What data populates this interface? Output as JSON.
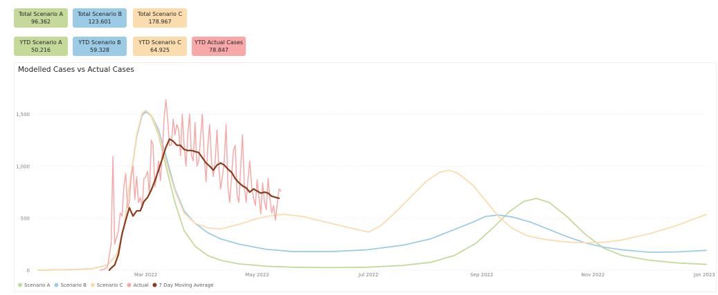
{
  "cards": [
    {
      "label": "Total Scenario A",
      "value": "96.362",
      "color": "#c5d99a"
    },
    {
      "label": "Total Scenario B",
      "value": "123.601",
      "color": "#9ccbe5"
    },
    {
      "label": "Total Scenario C",
      "value": "178.967",
      "color": "#fbdcae"
    },
    {
      "label": "YTD Scenario A",
      "value": "50.216",
      "color": "#c5d99a"
    },
    {
      "label": "YTD Scenario B",
      "value": "59.328",
      "color": "#9ccbe5"
    },
    {
      "label": "YTD Scenario C",
      "value": "64.925",
      "color": "#fbdcae"
    },
    {
      "label": "YTD Actual Cases",
      "value": "78.847",
      "color": "#f8a8a8"
    }
  ],
  "chart_data": {
    "type": "line",
    "title": "Modelled Cases vs Actual Cases",
    "xlabel": "",
    "ylabel": "",
    "x_ticks": [
      "Mar 2022",
      "May 2022",
      "Jul 2022",
      "Sep 2022",
      "Nov 2022",
      "Jan 2023"
    ],
    "x_tick_days": [
      59,
      120,
      181,
      243,
      304,
      365
    ],
    "xlim_days": [
      0,
      366
    ],
    "y_ticks": [
      "0",
      "500",
      "1,000",
      "1,500"
    ],
    "y_tick_values": [
      0,
      500,
      1000,
      1500
    ],
    "ylim": [
      0,
      1700
    ],
    "grid": true,
    "legend_position": "bottom-left",
    "series": [
      {
        "name": "Scenario A",
        "color": "#c5d99a",
        "width": 1.8,
        "points": [
          [
            0,
            0
          ],
          [
            20,
            5
          ],
          [
            30,
            15
          ],
          [
            38,
            50
          ],
          [
            43,
            150
          ],
          [
            47,
            400
          ],
          [
            50,
            800
          ],
          [
            54,
            1300
          ],
          [
            57,
            1500
          ],
          [
            59,
            1530
          ],
          [
            62,
            1480
          ],
          [
            66,
            1300
          ],
          [
            70,
            1000
          ],
          [
            75,
            650
          ],
          [
            80,
            380
          ],
          [
            86,
            230
          ],
          [
            93,
            140
          ],
          [
            100,
            95
          ],
          [
            110,
            60
          ],
          [
            125,
            38
          ],
          [
            140,
            28
          ],
          [
            160,
            24
          ],
          [
            180,
            28
          ],
          [
            200,
            45
          ],
          [
            215,
            75
          ],
          [
            228,
            140
          ],
          [
            240,
            260
          ],
          [
            250,
            420
          ],
          [
            258,
            560
          ],
          [
            266,
            660
          ],
          [
            273,
            690
          ],
          [
            280,
            650
          ],
          [
            290,
            510
          ],
          [
            300,
            340
          ],
          [
            310,
            210
          ],
          [
            320,
            140
          ],
          [
            335,
            95
          ],
          [
            350,
            70
          ],
          [
            366,
            55
          ]
        ]
      },
      {
        "name": "Scenario B",
        "color": "#9ccbe5",
        "width": 1.8,
        "points": [
          [
            0,
            0
          ],
          [
            20,
            5
          ],
          [
            30,
            15
          ],
          [
            38,
            50
          ],
          [
            43,
            150
          ],
          [
            47,
            400
          ],
          [
            50,
            800
          ],
          [
            54,
            1280
          ],
          [
            57,
            1490
          ],
          [
            59,
            1520
          ],
          [
            62,
            1490
          ],
          [
            66,
            1350
          ],
          [
            70,
            1100
          ],
          [
            75,
            780
          ],
          [
            80,
            570
          ],
          [
            86,
            450
          ],
          [
            93,
            360
          ],
          [
            100,
            300
          ],
          [
            110,
            250
          ],
          [
            125,
            200
          ],
          [
            140,
            178
          ],
          [
            160,
            178
          ],
          [
            180,
            195
          ],
          [
            200,
            240
          ],
          [
            215,
            300
          ],
          [
            228,
            390
          ],
          [
            238,
            460
          ],
          [
            245,
            515
          ],
          [
            252,
            530
          ],
          [
            260,
            510
          ],
          [
            270,
            460
          ],
          [
            280,
            390
          ],
          [
            290,
            320
          ],
          [
            300,
            260
          ],
          [
            310,
            220
          ],
          [
            320,
            195
          ],
          [
            335,
            172
          ],
          [
            350,
            175
          ],
          [
            366,
            190
          ]
        ]
      },
      {
        "name": "Scenario C",
        "color": "#fbdcae",
        "width": 1.8,
        "points": [
          [
            0,
            0
          ],
          [
            20,
            5
          ],
          [
            30,
            15
          ],
          [
            38,
            50
          ],
          [
            43,
            150
          ],
          [
            47,
            400
          ],
          [
            50,
            800
          ],
          [
            54,
            1300
          ],
          [
            57,
            1510
          ],
          [
            59,
            1535
          ],
          [
            62,
            1490
          ],
          [
            66,
            1320
          ],
          [
            70,
            1050
          ],
          [
            75,
            760
          ],
          [
            80,
            550
          ],
          [
            86,
            450
          ],
          [
            93,
            405
          ],
          [
            100,
            395
          ],
          [
            110,
            440
          ],
          [
            120,
            495
          ],
          [
            128,
            525
          ],
          [
            135,
            535
          ],
          [
            145,
            515
          ],
          [
            158,
            460
          ],
          [
            170,
            410
          ],
          [
            181,
            365
          ],
          [
            188,
            430
          ],
          [
            196,
            560
          ],
          [
            205,
            720
          ],
          [
            213,
            860
          ],
          [
            220,
            940
          ],
          [
            225,
            960
          ],
          [
            230,
            930
          ],
          [
            238,
            820
          ],
          [
            246,
            650
          ],
          [
            253,
            500
          ],
          [
            260,
            400
          ],
          [
            268,
            330
          ],
          [
            276,
            300
          ],
          [
            284,
            280
          ],
          [
            292,
            268
          ],
          [
            300,
            262
          ],
          [
            310,
            268
          ],
          [
            320,
            290
          ],
          [
            335,
            350
          ],
          [
            350,
            430
          ],
          [
            366,
            535
          ]
        ]
      },
      {
        "name": "Actual",
        "color": "#f8a8a8",
        "width": 1.5,
        "points": [
          [
            34,
            0
          ],
          [
            36,
            5
          ],
          [
            38,
            30
          ],
          [
            40,
            250
          ],
          [
            41,
            1090
          ],
          [
            42,
            250
          ],
          [
            44,
            380
          ],
          [
            45,
            550
          ],
          [
            46,
            520
          ],
          [
            47,
            800
          ],
          [
            48,
            930
          ],
          [
            49,
            600
          ],
          [
            50,
            650
          ],
          [
            51,
            900
          ],
          [
            52,
            1000
          ],
          [
            53,
            680
          ],
          [
            54,
            900
          ],
          [
            55,
            650
          ],
          [
            56,
            700
          ],
          [
            57,
            600
          ],
          [
            58,
            880
          ],
          [
            59,
            900
          ],
          [
            60,
            950
          ],
          [
            61,
            720
          ],
          [
            62,
            1250
          ],
          [
            63,
            1200
          ],
          [
            64,
            800
          ],
          [
            65,
            900
          ],
          [
            66,
            1050
          ],
          [
            67,
            860
          ],
          [
            68,
            1100
          ],
          [
            69,
            1450
          ],
          [
            70,
            1640
          ],
          [
            71,
            1450
          ],
          [
            72,
            1200
          ],
          [
            73,
            1200
          ],
          [
            74,
            1450
          ],
          [
            75,
            1300
          ],
          [
            76,
            1400
          ],
          [
            77,
            1350
          ],
          [
            78,
            1100
          ],
          [
            79,
            1500
          ],
          [
            80,
            1200
          ],
          [
            81,
            1000
          ],
          [
            82,
            1300
          ],
          [
            83,
            1500
          ],
          [
            84,
            1100
          ],
          [
            85,
            1050
          ],
          [
            86,
            1420
          ],
          [
            87,
            1000
          ],
          [
            88,
            1050
          ],
          [
            89,
            1280
          ],
          [
            90,
            1500
          ],
          [
            91,
            1100
          ],
          [
            92,
            850
          ],
          [
            93,
            1200
          ],
          [
            94,
            1400
          ],
          [
            95,
            1050
          ],
          [
            96,
            900
          ],
          [
            97,
            1050
          ],
          [
            98,
            1350
          ],
          [
            99,
            1000
          ],
          [
            100,
            780
          ],
          [
            101,
            900
          ],
          [
            102,
            1050
          ],
          [
            103,
            1400
          ],
          [
            104,
            800
          ],
          [
            105,
            650
          ],
          [
            106,
            900
          ],
          [
            107,
            1150
          ],
          [
            108,
            1200
          ],
          [
            109,
            720
          ],
          [
            110,
            650
          ],
          [
            111,
            1000
          ],
          [
            112,
            1300
          ],
          [
            113,
            800
          ],
          [
            114,
            650
          ],
          [
            115,
            880
          ],
          [
            116,
            1050
          ],
          [
            117,
            800
          ],
          [
            118,
            700
          ],
          [
            119,
            620
          ],
          [
            120,
            870
          ],
          [
            121,
            700
          ],
          [
            122,
            540
          ],
          [
            123,
            840
          ],
          [
            124,
            660
          ],
          [
            125,
            580
          ],
          [
            126,
            880
          ],
          [
            127,
            690
          ],
          [
            128,
            550
          ],
          [
            129,
            620
          ],
          [
            130,
            480
          ],
          [
            131,
            640
          ],
          [
            132,
            780
          ],
          [
            133,
            760
          ]
        ]
      },
      {
        "name": "7 Day Moving Average",
        "color": "#8b3a1a",
        "width": 2.2,
        "points": [
          [
            39,
            0
          ],
          [
            40,
            20
          ],
          [
            42,
            50
          ],
          [
            44,
            150
          ],
          [
            46,
            350
          ],
          [
            48,
            480
          ],
          [
            50,
            600
          ],
          [
            52,
            520
          ],
          [
            54,
            570
          ],
          [
            56,
            570
          ],
          [
            58,
            660
          ],
          [
            60,
            700
          ],
          [
            62,
            770
          ],
          [
            64,
            860
          ],
          [
            66,
            960
          ],
          [
            68,
            1070
          ],
          [
            70,
            1180
          ],
          [
            72,
            1260
          ],
          [
            74,
            1240
          ],
          [
            76,
            1200
          ],
          [
            78,
            1200
          ],
          [
            80,
            1160
          ],
          [
            82,
            1150
          ],
          [
            84,
            1150
          ],
          [
            86,
            1140
          ],
          [
            88,
            1130
          ],
          [
            90,
            1080
          ],
          [
            92,
            1030
          ],
          [
            94,
            1000
          ],
          [
            96,
            960
          ],
          [
            98,
            1010
          ],
          [
            100,
            1030
          ],
          [
            102,
            1010
          ],
          [
            104,
            970
          ],
          [
            106,
            940
          ],
          [
            108,
            880
          ],
          [
            110,
            840
          ],
          [
            112,
            810
          ],
          [
            114,
            790
          ],
          [
            116,
            750
          ],
          [
            118,
            780
          ],
          [
            120,
            760
          ],
          [
            122,
            740
          ],
          [
            124,
            750
          ],
          [
            126,
            740
          ],
          [
            128,
            710
          ],
          [
            130,
            700
          ],
          [
            132,
            690
          ]
        ]
      }
    ]
  }
}
